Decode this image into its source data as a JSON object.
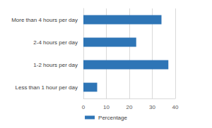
{
  "chart_data": {
    "type": "bar",
    "orientation": "horizontal",
    "categories": [
      "Less than 1 hour per day",
      "1-2 hours per day",
      "2-4 hours per day",
      "More than 4 hours per day"
    ],
    "series": [
      {
        "name": "Percentage",
        "color": "#2e75b6",
        "values": [
          6,
          37,
          23,
          34
        ]
      }
    ],
    "xlim": [
      0,
      40
    ],
    "xticks": [
      0,
      10,
      20,
      30,
      40
    ],
    "grid": true,
    "legend": "bottom"
  }
}
